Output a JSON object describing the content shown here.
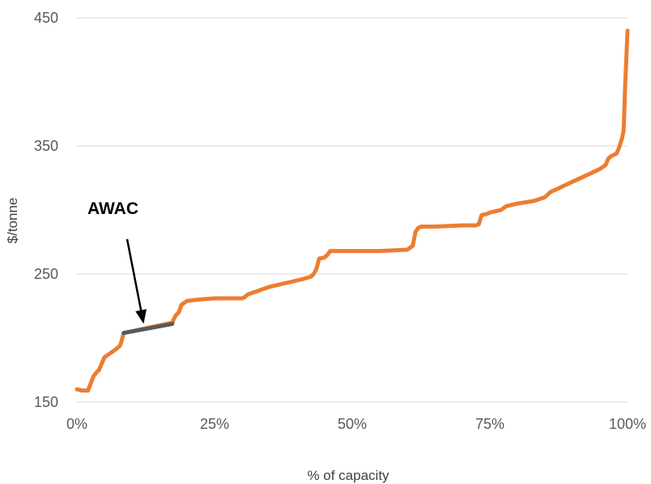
{
  "chart_data": {
    "type": "line",
    "title": "",
    "xlabel": "% of capacity",
    "ylabel": "$/tonne",
    "xlim": [
      0,
      100
    ],
    "ylim": [
      150,
      450
    ],
    "x_ticks": [
      0,
      25,
      50,
      75,
      100
    ],
    "x_tick_labels": [
      "0%",
      "25%",
      "50%",
      "75%",
      "100%"
    ],
    "y_ticks": [
      150,
      250,
      350,
      450
    ],
    "y_tick_labels": [
      "150",
      "250",
      "350",
      "450"
    ],
    "grid": true,
    "legend": "none",
    "series": [
      {
        "color": "#ed7d31",
        "x": [
          0,
          1,
          2,
          3,
          3.5,
          4,
          5,
          6,
          7,
          7.8,
          8,
          8.5,
          17.4,
          17.5,
          18,
          18.5,
          19,
          20,
          22,
          25,
          28,
          30,
          30.5,
          31,
          33,
          35,
          36,
          37,
          39,
          41,
          42.5,
          43,
          43.5,
          44,
          45,
          45.5,
          46,
          48,
          50,
          55,
          60,
          61,
          61.5,
          62,
          62.5,
          65,
          70,
          72.5,
          73,
          73.5,
          74.5,
          75,
          77,
          78,
          80,
          83,
          85,
          86,
          87,
          90,
          93,
          95,
          96,
          96.5,
          97,
          98,
          98.5,
          99,
          99.3,
          99.6,
          100
        ],
        "y": [
          160,
          159,
          159,
          170,
          173,
          175,
          185,
          188,
          191,
          194,
          196,
          204,
          212,
          214,
          218,
          220,
          226,
          229,
          230,
          231,
          231,
          231,
          232,
          234,
          237,
          240,
          241,
          242,
          244,
          246,
          248,
          250,
          254,
          262,
          263,
          265,
          268,
          268,
          268,
          268,
          269,
          272,
          283,
          286,
          287,
          287,
          288,
          288,
          289,
          296,
          297,
          298,
          300,
          303,
          305,
          307,
          310,
          314,
          316,
          322,
          328,
          332,
          335,
          340,
          342,
          344,
          349,
          356,
          362,
          400,
          440
        ]
      },
      {
        "name": "AWAC",
        "color": "#595959",
        "x": [
          8.5,
          17.3
        ],
        "y": [
          204,
          211
        ]
      }
    ],
    "annotations": [
      {
        "text": "AWAC",
        "arrow_to": {
          "x": 12.5,
          "y": 208
        }
      }
    ]
  }
}
